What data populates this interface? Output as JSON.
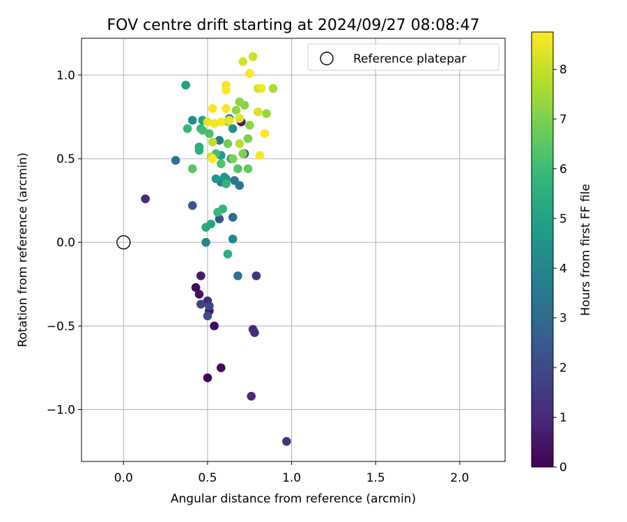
{
  "chart_data": {
    "type": "scatter",
    "title": "FOV centre drift starting at 2024/09/27 08:08:47",
    "xlabel": "Angular distance from reference (arcmin)",
    "ylabel": "Rotation from reference (arcmin)",
    "xlim": [
      -0.25,
      2.27
    ],
    "ylim": [
      -1.31,
      1.22
    ],
    "xticks": [
      0.0,
      0.5,
      1.0,
      1.5,
      2.0
    ],
    "yticks": [
      -1.0,
      -0.5,
      0.0,
      0.5,
      1.0
    ],
    "xtick_labels": [
      "0.0",
      "0.5",
      "1.0",
      "1.5",
      "2.0"
    ],
    "ytick_labels": [
      "−1.0",
      "−0.5",
      "0.0",
      "0.5",
      "1.0"
    ],
    "grid": true,
    "legend": {
      "position": "top-right",
      "entries": [
        "Reference platepar"
      ]
    },
    "reference_point": {
      "x": 0.0,
      "y": 0.0,
      "label": "Reference platepar"
    },
    "colorbar": {
      "label": "Hours from first FF file",
      "colormap": "viridis",
      "range": [
        0,
        8.75
      ],
      "ticks": [
        0,
        1,
        2,
        3,
        4,
        5,
        6,
        7,
        8
      ],
      "tick_labels": [
        "0",
        "1",
        "2",
        "3",
        "4",
        "5",
        "6",
        "7",
        "8"
      ]
    },
    "points": [
      {
        "x": 0.5,
        "y": -0.81,
        "c": 0.1
      },
      {
        "x": 0.58,
        "y": -0.75,
        "c": 0.2
      },
      {
        "x": 0.54,
        "y": -0.5,
        "c": 0.3
      },
      {
        "x": 0.43,
        "y": -0.27,
        "c": 0.3
      },
      {
        "x": 0.45,
        "y": -0.31,
        "c": 0.4
      },
      {
        "x": 0.51,
        "y": -0.41,
        "c": 0.5
      },
      {
        "x": 0.46,
        "y": -0.2,
        "c": 0.7
      },
      {
        "x": 0.7,
        "y": 0.72,
        "c": 0.6
      },
      {
        "x": 0.5,
        "y": -0.35,
        "c": 0.9
      },
      {
        "x": 0.13,
        "y": 0.26,
        "c": 1.0
      },
      {
        "x": 0.77,
        "y": -0.52,
        "c": 1.0
      },
      {
        "x": 0.78,
        "y": -0.54,
        "c": 1.1
      },
      {
        "x": 0.76,
        "y": -0.92,
        "c": 1.1
      },
      {
        "x": 0.97,
        "y": -1.19,
        "c": 1.3
      },
      {
        "x": 0.79,
        "y": -0.2,
        "c": 1.2
      },
      {
        "x": 0.46,
        "y": -0.37,
        "c": 1.7
      },
      {
        "x": 0.51,
        "y": -0.38,
        "c": 1.9
      },
      {
        "x": 0.5,
        "y": -0.44,
        "c": 2.0
      },
      {
        "x": 0.41,
        "y": 0.22,
        "c": 2.4
      },
      {
        "x": 0.57,
        "y": 0.14,
        "c": 2.3
      },
      {
        "x": 0.72,
        "y": 0.53,
        "c": 2.0
      },
      {
        "x": 0.65,
        "y": 0.15,
        "c": 3.0
      },
      {
        "x": 0.68,
        "y": -0.2,
        "c": 3.2
      },
      {
        "x": 0.31,
        "y": 0.49,
        "c": 3.2
      },
      {
        "x": 0.58,
        "y": 0.36,
        "c": 3.4
      },
      {
        "x": 0.69,
        "y": 0.34,
        "c": 3.5
      },
      {
        "x": 0.66,
        "y": 0.37,
        "c": 3.5
      },
      {
        "x": 0.57,
        "y": 0.61,
        "c": 3.6
      },
      {
        "x": 0.49,
        "y": 0.0,
        "c": 4.0
      },
      {
        "x": 0.65,
        "y": 0.02,
        "c": 4.1
      },
      {
        "x": 0.41,
        "y": 0.73,
        "c": 4.2
      },
      {
        "x": 0.63,
        "y": 0.74,
        "c": 4.1
      },
      {
        "x": 0.65,
        "y": 0.68,
        "c": 4.3
      },
      {
        "x": 0.64,
        "y": 0.5,
        "c": 4.4
      },
      {
        "x": 0.61,
        "y": 0.38,
        "c": 4.5
      },
      {
        "x": 0.55,
        "y": 0.38,
        "c": 4.6
      },
      {
        "x": 0.6,
        "y": 0.39,
        "c": 4.7
      },
      {
        "x": 0.58,
        "y": 0.52,
        "c": 4.8
      },
      {
        "x": 0.37,
        "y": 0.94,
        "c": 5.0
      },
      {
        "x": 0.47,
        "y": 0.73,
        "c": 5.1
      },
      {
        "x": 0.52,
        "y": 0.11,
        "c": 5.2
      },
      {
        "x": 0.49,
        "y": 0.09,
        "c": 5.3
      },
      {
        "x": 0.62,
        "y": -0.07,
        "c": 5.5
      },
      {
        "x": 0.61,
        "y": 0.35,
        "c": 5.6
      },
      {
        "x": 0.59,
        "y": 0.2,
        "c": 5.8
      },
      {
        "x": 0.56,
        "y": 0.18,
        "c": 5.9
      },
      {
        "x": 0.45,
        "y": 0.57,
        "c": 5.4
      },
      {
        "x": 0.45,
        "y": 0.55,
        "c": 5.5
      },
      {
        "x": 0.38,
        "y": 0.68,
        "c": 5.8
      },
      {
        "x": 0.46,
        "y": 0.68,
        "c": 5.9
      },
      {
        "x": 0.47,
        "y": 0.67,
        "c": 6.0
      },
      {
        "x": 0.51,
        "y": 0.65,
        "c": 6.2
      },
      {
        "x": 0.55,
        "y": 0.53,
        "c": 6.1
      },
      {
        "x": 0.58,
        "y": 0.47,
        "c": 6.3
      },
      {
        "x": 0.68,
        "y": 0.44,
        "c": 6.4
      },
      {
        "x": 0.74,
        "y": 0.44,
        "c": 6.6
      },
      {
        "x": 0.41,
        "y": 0.44,
        "c": 6.5
      },
      {
        "x": 0.62,
        "y": 0.59,
        "c": 6.8
      },
      {
        "x": 0.65,
        "y": 0.5,
        "c": 6.9
      },
      {
        "x": 0.71,
        "y": 0.53,
        "c": 7.0
      },
      {
        "x": 0.74,
        "y": 0.62,
        "c": 7.0
      },
      {
        "x": 0.72,
        "y": 0.82,
        "c": 7.1
      },
      {
        "x": 0.69,
        "y": 0.84,
        "c": 7.2
      },
      {
        "x": 0.67,
        "y": 0.79,
        "c": 7.3
      },
      {
        "x": 0.75,
        "y": 0.7,
        "c": 7.2
      },
      {
        "x": 0.85,
        "y": 0.77,
        "c": 7.4
      },
      {
        "x": 0.89,
        "y": 0.92,
        "c": 7.6
      },
      {
        "x": 0.62,
        "y": 0.72,
        "c": 7.5
      },
      {
        "x": 0.69,
        "y": 0.59,
        "c": 7.8
      },
      {
        "x": 0.53,
        "y": 0.6,
        "c": 7.9
      },
      {
        "x": 0.52,
        "y": 0.51,
        "c": 8.0
      },
      {
        "x": 0.71,
        "y": 1.08,
        "c": 8.2
      },
      {
        "x": 0.77,
        "y": 1.11,
        "c": 8.1
      },
      {
        "x": 0.8,
        "y": 0.78,
        "c": 8.3
      },
      {
        "x": 0.8,
        "y": 0.92,
        "c": 8.2
      },
      {
        "x": 0.63,
        "y": 0.73,
        "c": 8.5
      },
      {
        "x": 0.61,
        "y": 0.94,
        "c": 8.6
      },
      {
        "x": 0.61,
        "y": 0.91,
        "c": 8.7
      },
      {
        "x": 0.53,
        "y": 0.8,
        "c": 8.6
      },
      {
        "x": 0.61,
        "y": 0.8,
        "c": 8.8
      },
      {
        "x": 0.58,
        "y": 0.72,
        "c": 8.7
      },
      {
        "x": 0.5,
        "y": 0.72,
        "c": 8.5
      },
      {
        "x": 0.54,
        "y": 0.71,
        "c": 8.6
      },
      {
        "x": 0.53,
        "y": 0.5,
        "c": 8.8
      },
      {
        "x": 0.75,
        "y": 1.01,
        "c": 8.7
      },
      {
        "x": 0.82,
        "y": 0.92,
        "c": 8.6
      },
      {
        "x": 0.81,
        "y": 0.52,
        "c": 8.7
      },
      {
        "x": 0.84,
        "y": 0.65,
        "c": 8.8
      },
      {
        "x": 0.69,
        "y": 0.74,
        "c": 8.4
      }
    ]
  }
}
